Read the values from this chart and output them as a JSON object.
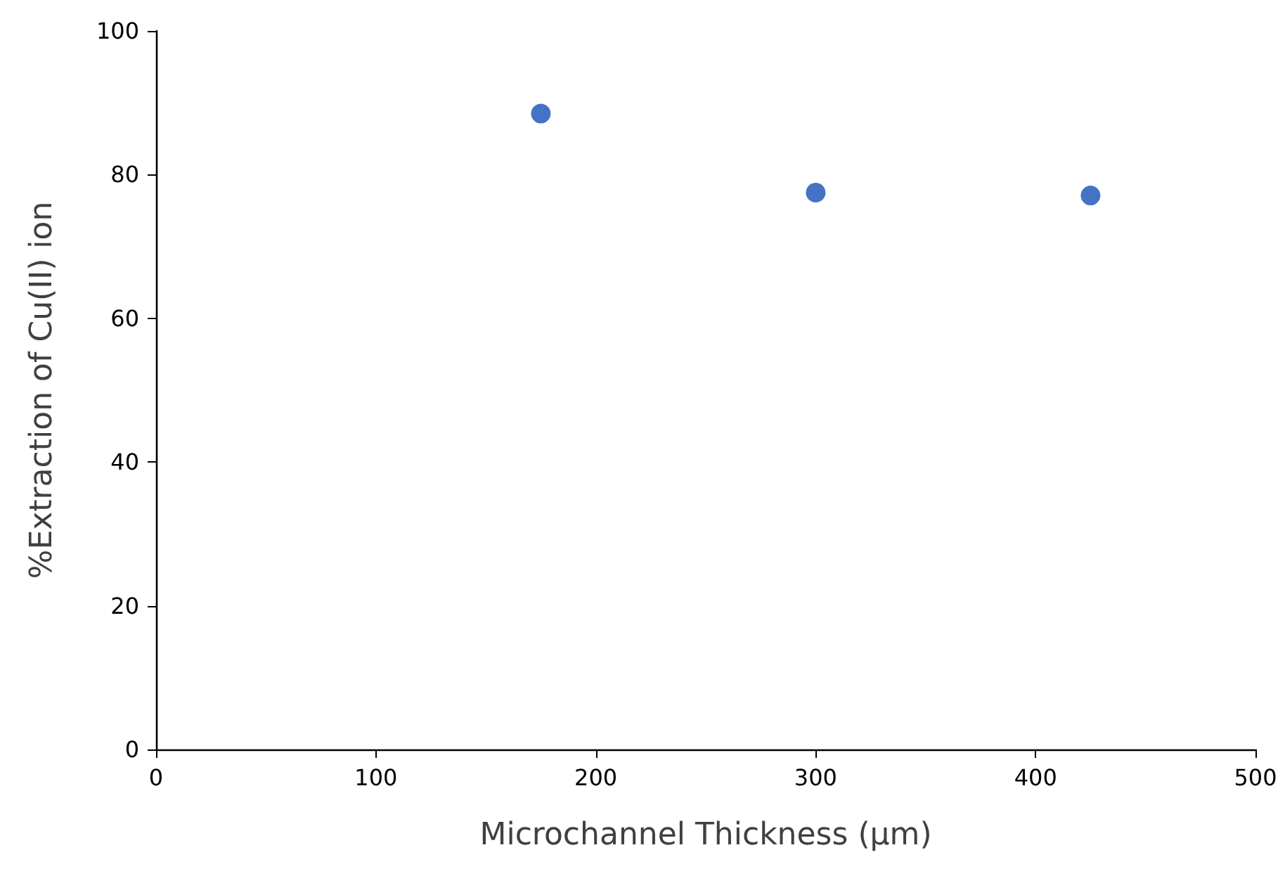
{
  "chart_data": {
    "type": "scatter",
    "xlabel": "Microchannel Thickness (μm)",
    "ylabel": "%Extraction of Cu(II) ion",
    "x": [
      175,
      300,
      425
    ],
    "series": [
      {
        "color": "#4472c4",
        "values": [
          88.5,
          77.5,
          77.1
        ]
      }
    ],
    "xlim": [
      0,
      500
    ],
    "xticks": [
      0,
      100,
      200,
      300,
      400,
      500
    ],
    "ylim": [
      0,
      100
    ],
    "yticks": [
      0,
      20,
      40,
      60,
      80,
      100
    ],
    "marker": "circle"
  }
}
